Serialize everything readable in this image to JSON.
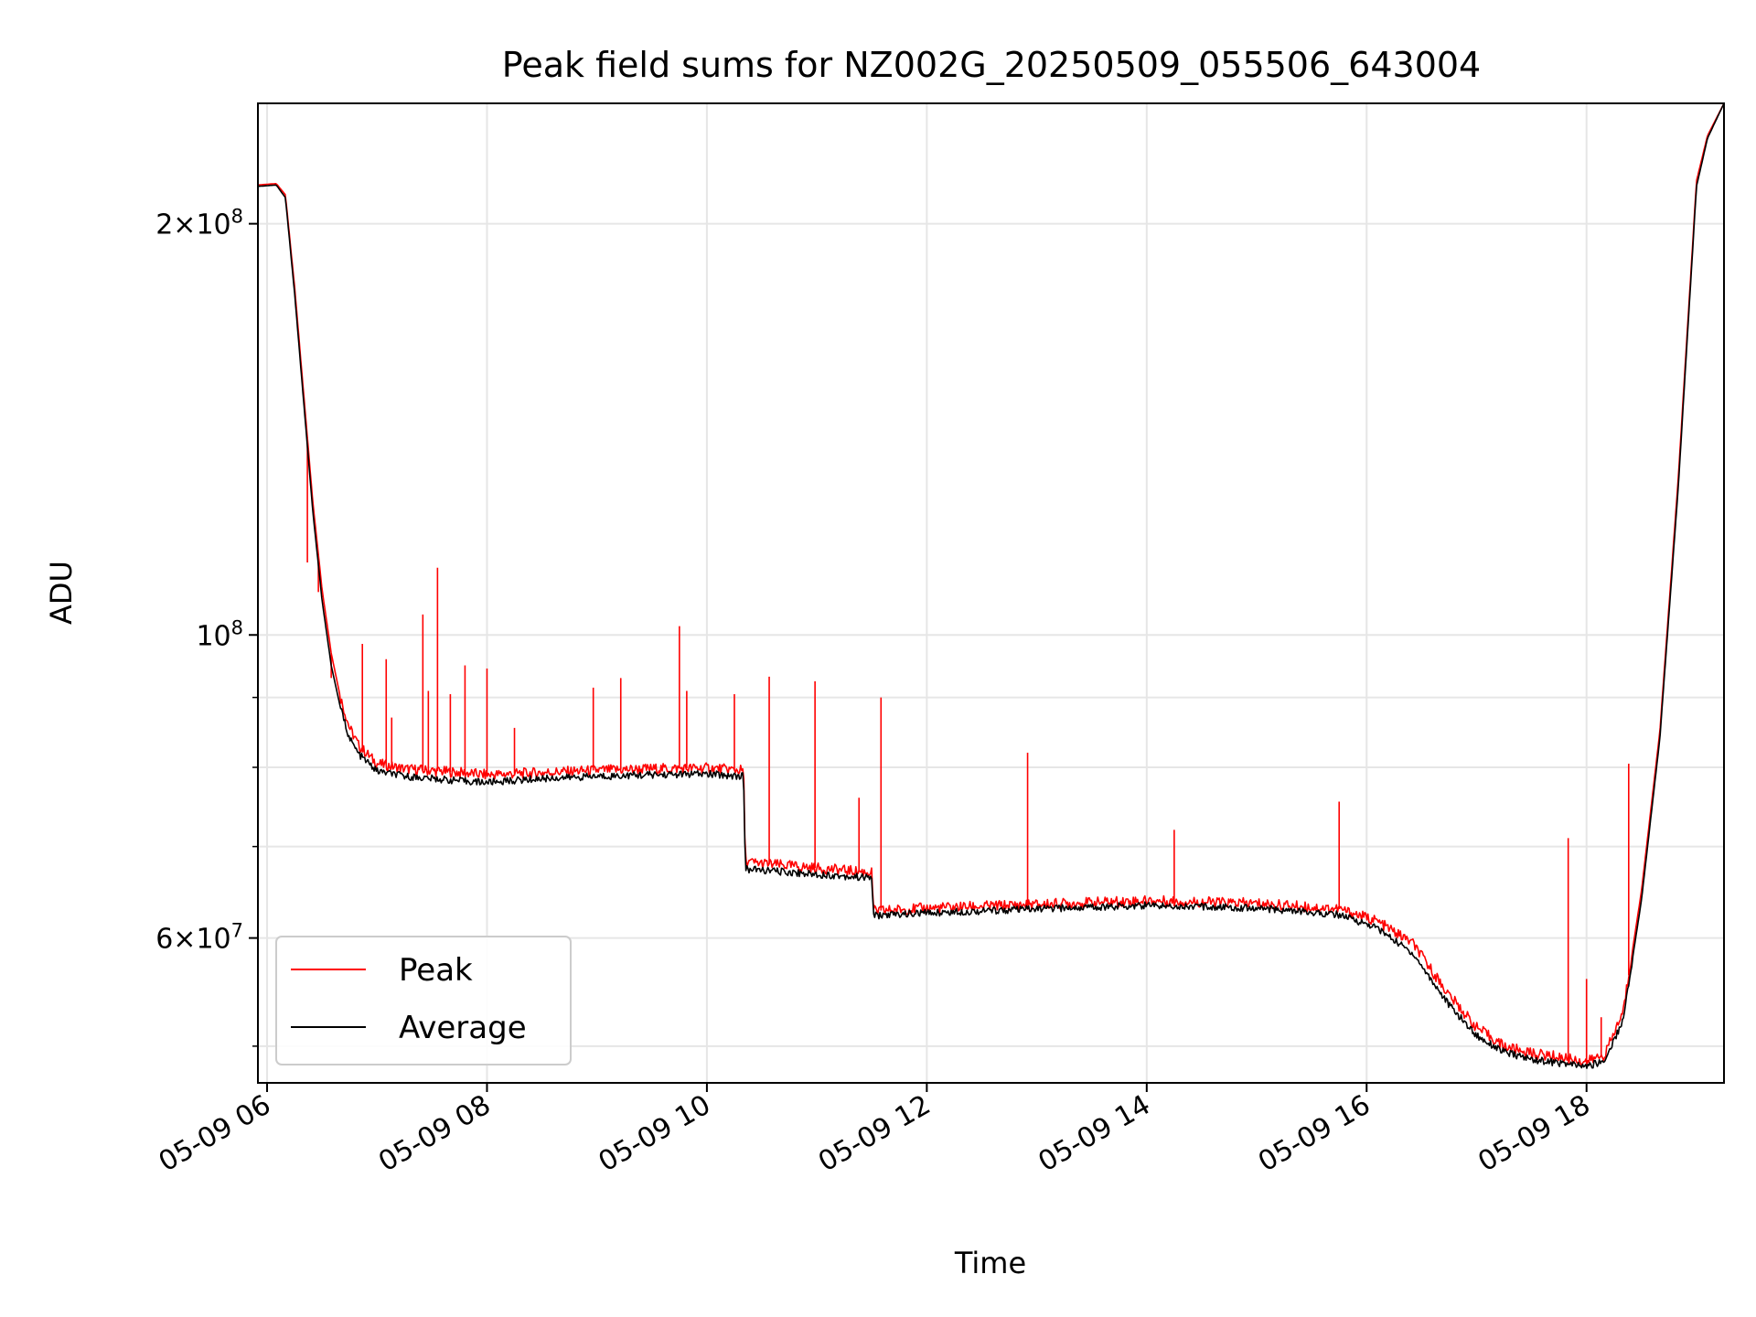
{
  "chart_data": {
    "type": "line",
    "title": "Peak field sums for NZ002G_20250509_055506_643004",
    "xlabel": "Time",
    "ylabel": "ADU",
    "x_scale": "time",
    "y_scale": "log",
    "xlim": [
      "05-09 05:55",
      "05-09 19:15"
    ],
    "ylim": [
      47000000,
      245000000
    ],
    "x_ticks": [
      "05-09 06",
      "05-09 08",
      "05-09 10",
      "05-09 12",
      "05-09 14",
      "05-09 16",
      "05-09 18"
    ],
    "y_ticks": [
      {
        "value": 200000000,
        "mantissa": "2",
        "exponent": "8"
      },
      {
        "value": 100000000,
        "mantissa": "",
        "exponent": "8"
      },
      {
        "value": 60000000,
        "mantissa": "6",
        "exponent": "7"
      }
    ],
    "grid": true,
    "legend_position": "lower-left",
    "series": [
      {
        "name": "Peak",
        "color": "#ff0000",
        "points": [
          [
            "05-09 05:55",
            213500000
          ],
          [
            "05-09 06:05",
            214000000
          ],
          [
            "05-09 06:10",
            210000000
          ],
          [
            "05-09 06:15",
            180000000
          ],
          [
            "05-09 06:20",
            150000000
          ],
          [
            "05-09 06:25",
            125000000
          ],
          [
            "05-09 06:30",
            108000000
          ],
          [
            "05-09 06:35",
            97000000
          ],
          [
            "05-09 06:40",
            90000000
          ],
          [
            "05-09 06:45",
            85500000
          ],
          [
            "05-09 06:50",
            83000000
          ],
          [
            "05-09 07:00",
            80500000
          ],
          [
            "05-09 07:15",
            79800000
          ],
          [
            "05-09 07:45",
            79300000
          ],
          [
            "05-09 08:00",
            79000000
          ],
          [
            "05-09 08:30",
            79300000
          ],
          [
            "05-09 09:00",
            79600000
          ],
          [
            "05-09 09:30",
            79800000
          ],
          [
            "05-09 10:00",
            79900000
          ],
          [
            "05-09 10:20",
            79600000
          ],
          [
            "05-09 10:21",
            68200000
          ],
          [
            "05-09 11:00",
            67500000
          ],
          [
            "05-09 11:30",
            67000000
          ],
          [
            "05-09 11:31",
            62800000
          ],
          [
            "05-09 12:00",
            63100000
          ],
          [
            "05-09 13:00",
            63500000
          ],
          [
            "05-09 14:00",
            63900000
          ],
          [
            "05-09 15:00",
            63600000
          ],
          [
            "05-09 15:45",
            63000000
          ],
          [
            "05-09 16:05",
            61800000
          ],
          [
            "05-09 16:25",
            59500000
          ],
          [
            "05-09 16:45",
            54500000
          ],
          [
            "05-09 17:00",
            51600000
          ],
          [
            "05-09 17:15",
            50000000
          ],
          [
            "05-09 17:30",
            49400000
          ],
          [
            "05-09 17:45",
            49100000
          ],
          [
            "05-09 18:00",
            48700000
          ],
          [
            "05-09 18:10",
            49300000
          ],
          [
            "05-09 18:20",
            53000000
          ],
          [
            "05-09 18:30",
            65000000
          ],
          [
            "05-09 18:40",
            85000000
          ],
          [
            "05-09 18:50",
            130000000
          ],
          [
            "05-09 19:00",
            215000000
          ],
          [
            "05-09 19:06",
            232000000
          ],
          [
            "05-09 19:15",
            245000000
          ]
        ],
        "spikes": [
          [
            "05-09 06:22",
            113000000
          ],
          [
            "05-09 06:28",
            107500000
          ],
          [
            "05-09 06:35",
            93000000
          ],
          [
            "05-09 06:52",
            98500000
          ],
          [
            "05-09 07:05",
            96000000
          ],
          [
            "05-09 07:08",
            87000000
          ],
          [
            "05-09 07:25",
            103500000
          ],
          [
            "05-09 07:28",
            91000000
          ],
          [
            "05-09 07:33",
            112000000
          ],
          [
            "05-09 07:40",
            90500000
          ],
          [
            "05-09 07:48",
            95000000
          ],
          [
            "05-09 08:00",
            94500000
          ],
          [
            "05-09 08:15",
            85500000
          ],
          [
            "05-09 08:58",
            91500000
          ],
          [
            "05-09 09:13",
            93000000
          ],
          [
            "05-09 09:45",
            101500000
          ],
          [
            "05-09 09:49",
            91000000
          ],
          [
            "05-09 10:15",
            90500000
          ],
          [
            "05-09 10:34",
            93200000
          ],
          [
            "05-09 10:59",
            92500000
          ],
          [
            "05-09 11:23",
            76000000
          ],
          [
            "05-09 11:35",
            90000000
          ],
          [
            "05-09 12:55",
            82000000
          ],
          [
            "05-09 14:15",
            72000000
          ],
          [
            "05-09 15:45",
            75500000
          ],
          [
            "05-09 17:50",
            71000000
          ],
          [
            "05-09 18:00",
            56000000
          ],
          [
            "05-09 18:08",
            52500000
          ],
          [
            "05-09 18:23",
            80500000
          ]
        ]
      },
      {
        "name": "Average",
        "color": "#000000",
        "points": [
          [
            "05-09 05:55",
            213000000
          ],
          [
            "05-09 06:05",
            213500000
          ],
          [
            "05-09 06:10",
            209000000
          ],
          [
            "05-09 06:15",
            178000000
          ],
          [
            "05-09 06:20",
            148000000
          ],
          [
            "05-09 06:25",
            123000000
          ],
          [
            "05-09 06:30",
            106000000
          ],
          [
            "05-09 06:35",
            95000000
          ],
          [
            "05-09 06:40",
            88500000
          ],
          [
            "05-09 06:45",
            84000000
          ],
          [
            "05-09 06:50",
            81800000
          ],
          [
            "05-09 07:00",
            79500000
          ],
          [
            "05-09 07:15",
            78800000
          ],
          [
            "05-09 07:45",
            78200000
          ],
          [
            "05-09 08:00",
            78000000
          ],
          [
            "05-09 08:30",
            78500000
          ],
          [
            "05-09 09:00",
            78800000
          ],
          [
            "05-09 09:30",
            79000000
          ],
          [
            "05-09 10:00",
            79100000
          ],
          [
            "05-09 10:20",
            78800000
          ],
          [
            "05-09 10:21",
            67400000
          ],
          [
            "05-09 11:00",
            66800000
          ],
          [
            "05-09 11:30",
            66400000
          ],
          [
            "05-09 11:31",
            62300000
          ],
          [
            "05-09 12:00",
            62600000
          ],
          [
            "05-09 13:00",
            63000000
          ],
          [
            "05-09 14:00",
            63400000
          ],
          [
            "05-09 15:00",
            63100000
          ],
          [
            "05-09 15:45",
            62400000
          ],
          [
            "05-09 16:05",
            61100000
          ],
          [
            "05-09 16:25",
            58500000
          ],
          [
            "05-09 16:45",
            53600000
          ],
          [
            "05-09 17:00",
            50900000
          ],
          [
            "05-09 17:15",
            49500000
          ],
          [
            "05-09 17:30",
            48900000
          ],
          [
            "05-09 17:45",
            48600000
          ],
          [
            "05-09 18:00",
            48300000
          ],
          [
            "05-09 18:10",
            48800000
          ],
          [
            "05-09 18:20",
            52300000
          ],
          [
            "05-09 18:30",
            64000000
          ],
          [
            "05-09 18:40",
            84000000
          ],
          [
            "05-09 18:50",
            128000000
          ],
          [
            "05-09 19:00",
            213000000
          ],
          [
            "05-09 19:06",
            231000000
          ],
          [
            "05-09 19:15",
            245000000
          ]
        ]
      }
    ]
  }
}
